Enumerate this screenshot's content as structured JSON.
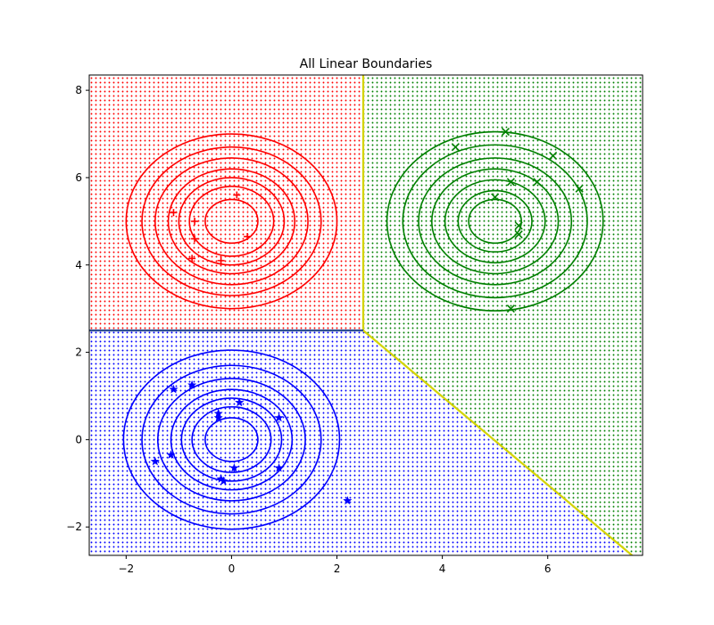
{
  "chart_data": {
    "type": "scatter",
    "title": "All Linear Boundaries",
    "xlabel": "",
    "ylabel": "",
    "xlim": [
      -2.7,
      7.8
    ],
    "ylim": [
      -2.65,
      8.35
    ],
    "x_ticks": [
      -2,
      0,
      2,
      4,
      6
    ],
    "y_ticks": [
      -2,
      0,
      2,
      4,
      6,
      8
    ],
    "grid": false,
    "legend": "none",
    "regions": [
      {
        "class": "red",
        "color": "#ff0000",
        "polygon": [
          [
            -2.7,
            2.5
          ],
          [
            2.5,
            2.5
          ],
          [
            2.5,
            8.35
          ],
          [
            -2.7,
            8.35
          ]
        ]
      },
      {
        "class": "green",
        "color": "#008000",
        "polygon": [
          [
            2.5,
            2.5
          ],
          [
            2.5,
            8.35
          ],
          [
            7.8,
            8.35
          ],
          [
            7.8,
            -2.65
          ],
          [
            7.6,
            -2.65
          ]
        ]
      },
      {
        "class": "blue",
        "color": "#0000ff",
        "polygon": [
          [
            -2.7,
            -2.65
          ],
          [
            7.6,
            -2.65
          ],
          [
            2.5,
            2.5
          ],
          [
            -2.7,
            2.5
          ]
        ]
      }
    ],
    "boundaries": [
      {
        "color": "#d4d400",
        "points": [
          [
            2.5,
            8.35
          ],
          [
            2.5,
            2.5
          ]
        ]
      },
      {
        "color": "#d4d400",
        "points": [
          [
            2.5,
            2.5
          ],
          [
            7.6,
            -2.65
          ]
        ]
      },
      {
        "color": "#2f4f8f",
        "points": [
          [
            -2.7,
            2.5
          ],
          [
            2.5,
            2.5
          ]
        ]
      }
    ],
    "contours": [
      {
        "name": "red",
        "color": "#ff0000",
        "center": [
          0,
          5
        ],
        "radii": [
          2.0,
          1.7,
          1.45,
          1.2,
          1.0,
          0.8,
          0.5
        ]
      },
      {
        "name": "green",
        "color": "#008000",
        "center": [
          5,
          5
        ],
        "radii": [
          2.05,
          1.75,
          1.45,
          1.2,
          0.95,
          0.7,
          0.5
        ]
      },
      {
        "name": "blue",
        "color": "#0000ff",
        "center": [
          0,
          0
        ],
        "radii": [
          2.05,
          1.7,
          1.4,
          1.15,
          0.95,
          0.75,
          0.5
        ]
      }
    ],
    "series": [
      {
        "color": "#ff0000",
        "marker": "+",
        "points": [
          [
            -1.1,
            5.2
          ],
          [
            0.1,
            5.6
          ],
          [
            -0.7,
            5.0
          ],
          [
            -0.7,
            4.6
          ],
          [
            0.3,
            4.65
          ],
          [
            -0.75,
            4.15
          ],
          [
            -0.2,
            4.1
          ]
        ]
      },
      {
        "color": "#008000",
        "marker": "x",
        "points": [
          [
            4.25,
            6.7
          ],
          [
            5.2,
            7.05
          ],
          [
            6.1,
            6.5
          ],
          [
            5.3,
            5.9
          ],
          [
            5.8,
            5.9
          ],
          [
            6.6,
            5.75
          ],
          [
            5.0,
            5.55
          ],
          [
            5.45,
            4.9
          ],
          [
            5.45,
            4.7
          ],
          [
            5.3,
            3.0
          ]
        ]
      },
      {
        "color": "#0000ff",
        "marker": "*",
        "points": [
          [
            -1.1,
            1.15
          ],
          [
            -0.75,
            1.25
          ],
          [
            0.15,
            0.85
          ],
          [
            -0.25,
            0.6
          ],
          [
            -0.25,
            0.5
          ],
          [
            0.9,
            0.5
          ],
          [
            -1.15,
            -0.35
          ],
          [
            -1.45,
            -0.5
          ],
          [
            0.05,
            -0.65
          ],
          [
            0.9,
            -0.65
          ],
          [
            -0.2,
            -0.9
          ],
          [
            -0.15,
            -0.95
          ],
          [
            2.2,
            -1.4
          ]
        ]
      }
    ]
  }
}
